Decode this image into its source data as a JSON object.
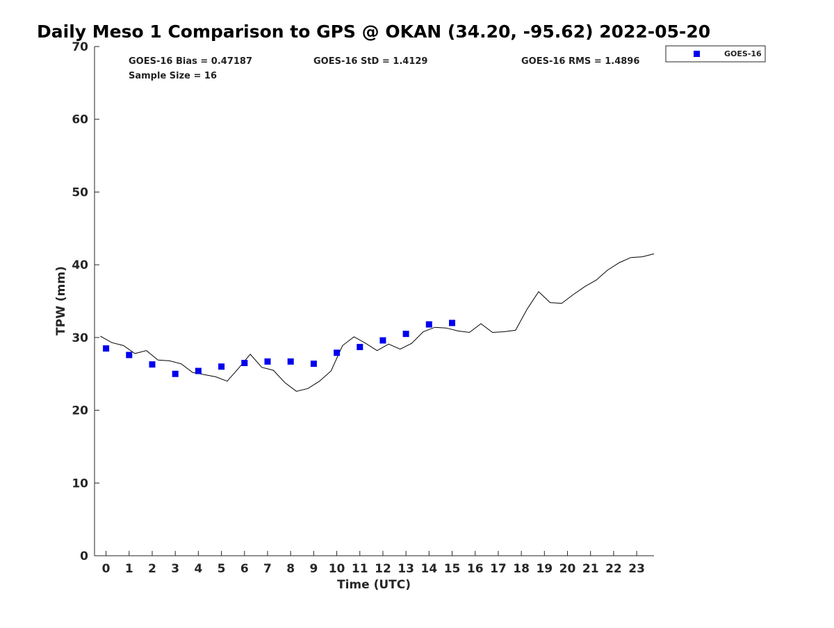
{
  "chart_data": {
    "type": "scatter",
    "title": "Daily Meso 1 Comparison to GPS @ OKAN (34.20, -95.62) 2022-05-20",
    "xlabel": "Time (UTC)",
    "ylabel": "TPW (mm)",
    "xlim": [
      -0.5,
      23.75
    ],
    "ylim": [
      0,
      70
    ],
    "x_ticks": [
      "0",
      "1",
      "2",
      "3",
      "4",
      "5",
      "6",
      "7",
      "8",
      "9",
      "10",
      "11",
      "12",
      "13",
      "14",
      "15",
      "16",
      "17",
      "18",
      "19",
      "20",
      "21",
      "22",
      "23"
    ],
    "y_ticks": [
      "0",
      "10",
      "20",
      "30",
      "40",
      "50",
      "60",
      "70"
    ],
    "grid": false,
    "legend_position": "top-right (outside plot)",
    "stats": {
      "bias": "GOES-16 Bias = 0.47187",
      "std": "GOES-16 StD = 1.4129",
      "rms": "GOES-16 RMS = 1.4896",
      "sample_size": "Sample Size = 16"
    },
    "series": [
      {
        "name": "GOES-16",
        "type": "scatter",
        "marker": "square",
        "color": "#0000ee",
        "x": [
          0,
          1,
          2,
          3,
          4,
          5,
          6,
          7,
          8,
          9,
          10,
          11,
          12,
          13,
          14,
          15
        ],
        "y": [
          28.5,
          27.6,
          26.3,
          25.0,
          25.4,
          26.0,
          26.5,
          26.7,
          26.7,
          26.4,
          27.9,
          28.7,
          29.6,
          30.5,
          31.8,
          32.0
        ]
      },
      {
        "type": "line",
        "color": "#000000",
        "x": [
          -0.25,
          0.25,
          0.75,
          1.25,
          1.75,
          2.25,
          2.75,
          3.25,
          3.75,
          4.25,
          4.75,
          5.25,
          5.75,
          6.25,
          6.75,
          7.25,
          7.75,
          8.25,
          8.75,
          9.25,
          9.75,
          10.25,
          10.75,
          11.25,
          11.75,
          12.25,
          12.75,
          13.25,
          13.75,
          14.25,
          14.75,
          15.25,
          15.75,
          16.25,
          16.75,
          17.25,
          17.75,
          18.25,
          18.75,
          19.25,
          19.75,
          20.25,
          20.75,
          21.25,
          21.75,
          22.25,
          22.75,
          23.25,
          23.75
        ],
        "y": [
          30.2,
          29.3,
          28.9,
          27.8,
          28.2,
          26.9,
          26.8,
          26.4,
          25.2,
          24.9,
          24.6,
          24.0,
          25.8,
          27.7,
          25.9,
          25.5,
          23.8,
          22.6,
          23.0,
          24.0,
          25.4,
          28.9,
          30.1,
          29.2,
          28.2,
          29.1,
          28.4,
          29.2,
          30.8,
          31.4,
          31.3,
          30.9,
          30.7,
          31.9,
          30.7,
          30.8,
          31.0,
          33.9,
          36.3,
          34.8,
          34.7,
          35.9,
          37.0,
          37.9,
          39.3,
          40.3,
          41.0,
          41.1,
          41.5
        ]
      }
    ]
  }
}
